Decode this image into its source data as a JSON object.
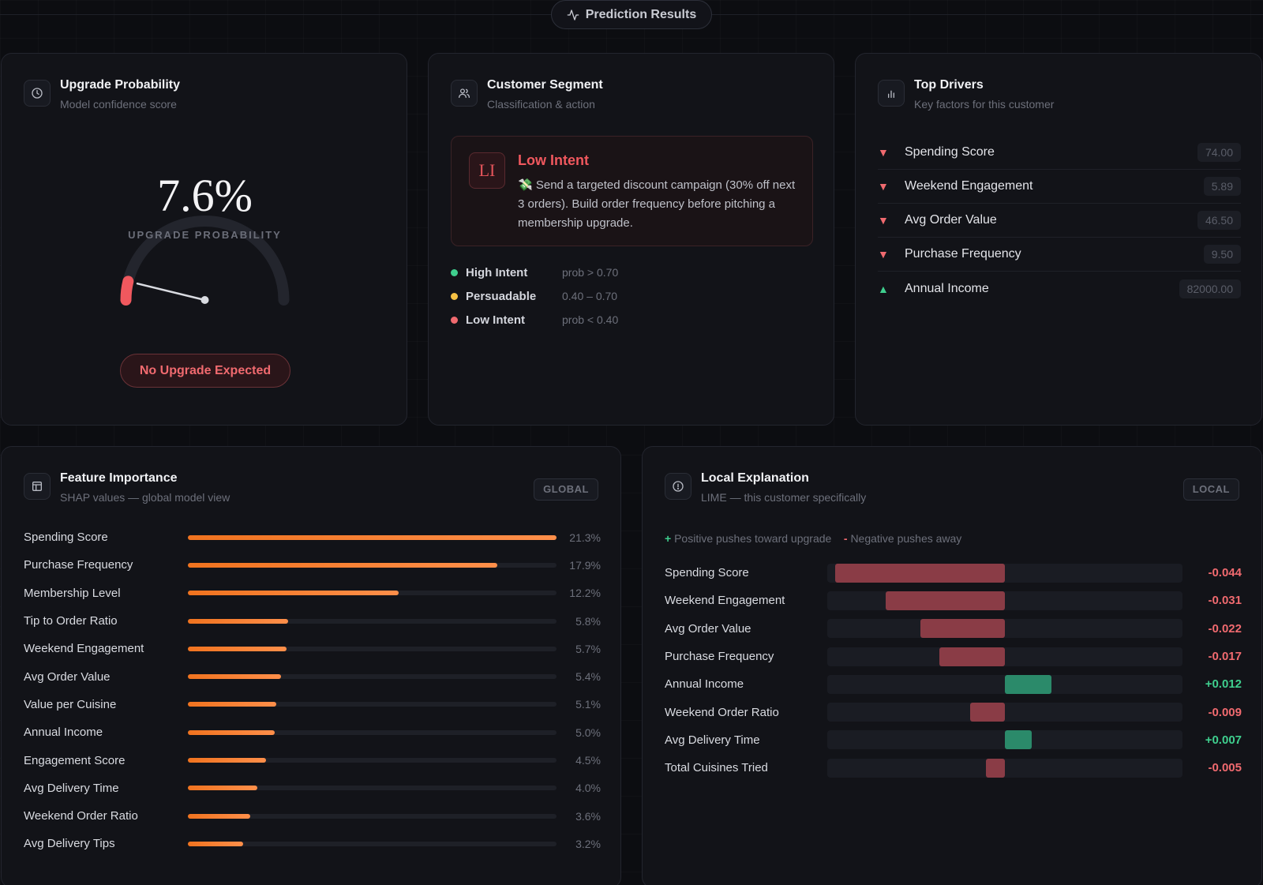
{
  "header": {
    "title": "Prediction Results",
    "icon": "activity-icon"
  },
  "probability_card": {
    "title": "Upgrade Probability",
    "subtitle": "Model confidence score",
    "icon": "clock-icon",
    "probability": 0.076,
    "value_label": "7.6%",
    "caption": "UPGRADE PROBABILITY",
    "badge": "No Upgrade Expected",
    "accent": "#f0585e"
  },
  "segment_card": {
    "title": "Customer Segment",
    "subtitle": "Classification & action",
    "icon": "users-icon",
    "segment": {
      "initials": "LI",
      "name": "Low Intent",
      "emoji": "💸",
      "recommendation": "Send a targeted discount campaign (30% off next 3 orders). Build order frequency before pitching a membership upgrade."
    },
    "legend": [
      {
        "name": "High Intent",
        "range": "prob > 0.70",
        "color": "#3fcf8e"
      },
      {
        "name": "Persuadable",
        "range": "0.40 – 0.70",
        "color": "#f5c144"
      },
      {
        "name": "Low Intent",
        "range": "prob < 0.40",
        "color": "#f06a6f"
      }
    ]
  },
  "drivers_card": {
    "title": "Top Drivers",
    "subtitle": "Key factors for this customer",
    "icon": "bar-chart-icon",
    "drivers": [
      {
        "name": "Spending Score",
        "value": "74.00",
        "direction": "down"
      },
      {
        "name": "Weekend Engagement",
        "value": "5.89",
        "direction": "down"
      },
      {
        "name": "Avg Order Value",
        "value": "46.50",
        "direction": "down"
      },
      {
        "name": "Purchase Frequency",
        "value": "9.50",
        "direction": "down"
      },
      {
        "name": "Annual Income",
        "value": "82000.00",
        "direction": "up"
      }
    ]
  },
  "feature_importance": {
    "title": "Feature Importance",
    "subtitle": "SHAP values — global model view",
    "icon": "layout-icon",
    "tag": "GLOBAL",
    "max": 21.3,
    "features": [
      {
        "name": "Spending Score",
        "value": 21.3,
        "label": "21.3%"
      },
      {
        "name": "Purchase Frequency",
        "value": 17.9,
        "label": "17.9%"
      },
      {
        "name": "Membership Level",
        "value": 12.2,
        "label": "12.2%"
      },
      {
        "name": "Tip to Order Ratio",
        "value": 5.8,
        "label": "5.8%"
      },
      {
        "name": "Weekend Engagement",
        "value": 5.7,
        "label": "5.7%"
      },
      {
        "name": "Avg Order Value",
        "value": 5.4,
        "label": "5.4%"
      },
      {
        "name": "Value per Cuisine",
        "value": 5.1,
        "label": "5.1%"
      },
      {
        "name": "Annual Income",
        "value": 5.0,
        "label": "5.0%"
      },
      {
        "name": "Engagement Score",
        "value": 4.5,
        "label": "4.5%"
      },
      {
        "name": "Avg Delivery Time",
        "value": 4.0,
        "label": "4.0%"
      },
      {
        "name": "Weekend Order Ratio",
        "value": 3.6,
        "label": "3.6%"
      },
      {
        "name": "Avg Delivery Tips",
        "value": 3.2,
        "label": "3.2%"
      }
    ]
  },
  "local_explanation": {
    "title": "Local Explanation",
    "subtitle": "LIME — this customer specifically",
    "icon": "info-icon",
    "tag": "LOCAL",
    "legend_positive_sign": "+",
    "legend_positive": "Positive pushes toward upgrade",
    "legend_negative_sign": "-",
    "legend_negative": "Negative pushes away",
    "scale_max": 0.044,
    "positive_color": "#2b8a6a",
    "negative_color": "#8a3c46",
    "items": [
      {
        "name": "Spending Score",
        "value": -0.044,
        "label": "-0.044"
      },
      {
        "name": "Weekend Engagement",
        "value": -0.031,
        "label": "-0.031"
      },
      {
        "name": "Avg Order Value",
        "value": -0.022,
        "label": "-0.022"
      },
      {
        "name": "Purchase Frequency",
        "value": -0.017,
        "label": "-0.017"
      },
      {
        "name": "Annual Income",
        "value": 0.012,
        "label": "+0.012"
      },
      {
        "name": "Weekend Order Ratio",
        "value": -0.009,
        "label": "-0.009"
      },
      {
        "name": "Avg Delivery Time",
        "value": 0.007,
        "label": "+0.007"
      },
      {
        "name": "Total Cuisines Tried",
        "value": -0.005,
        "label": "-0.005"
      }
    ]
  }
}
